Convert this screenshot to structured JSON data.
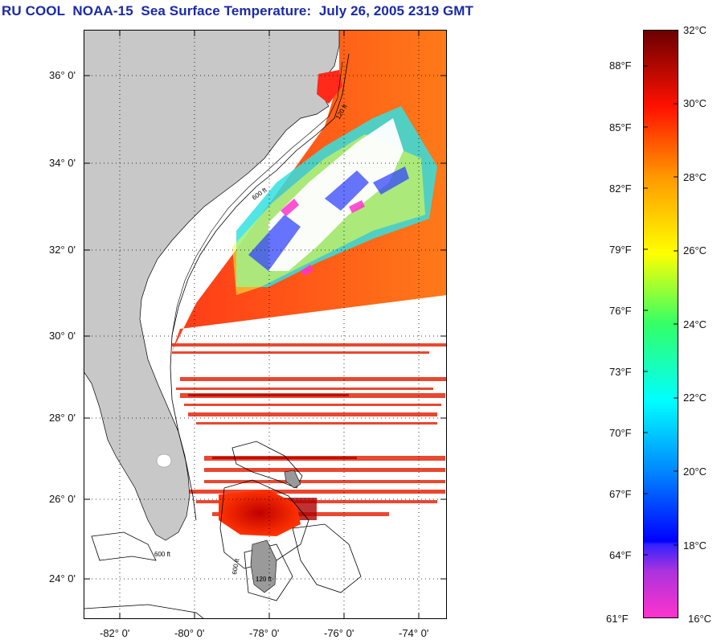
{
  "title": "RU COOL  NOAA-15  Sea Surface Temperature:  July 26, 2005 2319 GMT",
  "map": {
    "lat_labels": [
      "36° 0'",
      "34° 0'",
      "32° 0'",
      "30° 0'",
      "28° 0'",
      "26° 0'",
      "24° 0'"
    ],
    "lon_labels": [
      "-82° 0'",
      "-80° 0'",
      "-78° 0'",
      "-76° 0'",
      "-74° 0'"
    ],
    "lat_values": [
      36,
      34,
      32,
      30,
      28,
      26,
      24
    ],
    "lon_values": [
      -82,
      -80,
      -78,
      -76,
      -74
    ],
    "lat_range": [
      23,
      37
    ],
    "lon_range": [
      -83,
      -73.2
    ],
    "contour_labels": [
      "600 ft",
      "120 ft",
      "600 ft",
      "600 ft",
      "120 ft"
    ],
    "colors": {
      "land": "#c8c8c8",
      "warm_sea": "#ff3b1a",
      "no_data": "#ffffff",
      "gridline": "#000000"
    }
  },
  "colorbar": {
    "celsius_labels": [
      "32°C",
      "30°C",
      "28°C",
      "26°C",
      "24°C",
      "22°C",
      "20°C",
      "18°C",
      "16°C"
    ],
    "fahrenheit_labels": [
      "88°F",
      "85°F",
      "82°F",
      "79°F",
      "76°F",
      "73°F",
      "70°F",
      "67°F",
      "64°F",
      "61°F"
    ],
    "range_c": [
      16,
      32
    ],
    "stops": [
      "#ff33cc",
      "#8a2be2",
      "#0000ff",
      "#0099ff",
      "#00ffff",
      "#33ff66",
      "#ffff00",
      "#ff9900",
      "#ff2200",
      "#7a0000"
    ]
  }
}
